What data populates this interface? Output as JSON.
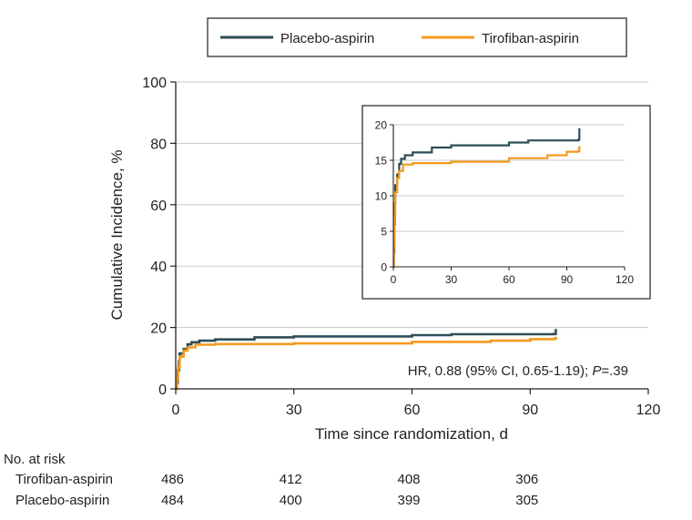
{
  "chart_data": {
    "type": "line",
    "subtype": "kaplan-meier cumulative incidence",
    "xlabel": "Time since randomization, d",
    "ylabel": "Cumulative Incidence, %",
    "xlim": [
      0,
      120
    ],
    "ylim": [
      0,
      100
    ],
    "xticks": [
      "0",
      "30",
      "60",
      "90",
      "120"
    ],
    "yticks": [
      "0",
      "20",
      "40",
      "60",
      "80",
      "100"
    ],
    "grid": "horizontal",
    "legend_position": "top-center",
    "annotation": {
      "prefix": "HR, 0.88 (95% CI, 0.65-1.19); ",
      "p_label": "P",
      "p_value": "=.39"
    },
    "series": [
      {
        "name": "Placebo-aspirin",
        "color": "#2e4e57",
        "points": [
          [
            0,
            0
          ],
          [
            0.3,
            2
          ],
          [
            0.5,
            6
          ],
          [
            0.8,
            9
          ],
          [
            1,
            11.5
          ],
          [
            2,
            13
          ],
          [
            3,
            14.5
          ],
          [
            4,
            15.2
          ],
          [
            6,
            15.7
          ],
          [
            10,
            16.1
          ],
          [
            20,
            16.8
          ],
          [
            30,
            17.1
          ],
          [
            60,
            17.5
          ],
          [
            70,
            17.8
          ],
          [
            96,
            17.9
          ],
          [
            96.5,
            19.5
          ]
        ]
      },
      {
        "name": "Tirofiban-aspirin",
        "color": "#f39a1e",
        "points": [
          [
            0,
            0
          ],
          [
            0.3,
            3
          ],
          [
            0.6,
            7
          ],
          [
            1,
            10.5
          ],
          [
            2,
            12.5
          ],
          [
            3,
            13.5
          ],
          [
            5,
            14.4
          ],
          [
            10,
            14.6
          ],
          [
            30,
            14.8
          ],
          [
            60,
            15.3
          ],
          [
            80,
            15.7
          ],
          [
            90,
            16.2
          ],
          [
            96,
            16.3
          ],
          [
            96.5,
            17
          ]
        ]
      }
    ],
    "inset": {
      "xlim": [
        0,
        120
      ],
      "ylim": [
        0,
        20
      ],
      "xticks": [
        "0",
        "30",
        "60",
        "90",
        "120"
      ],
      "yticks": [
        "0",
        "5",
        "10",
        "15",
        "20"
      ],
      "grid": "horizontal"
    },
    "risk_table": {
      "title": "No. at risk",
      "times": [
        0,
        30,
        60,
        90
      ],
      "rows": [
        {
          "label": "Tirofiban-aspirin",
          "values": [
            "486",
            "412",
            "408",
            "306"
          ]
        },
        {
          "label": "Placebo-aspirin",
          "values": [
            "484",
            "400",
            "399",
            "305"
          ]
        }
      ]
    }
  }
}
